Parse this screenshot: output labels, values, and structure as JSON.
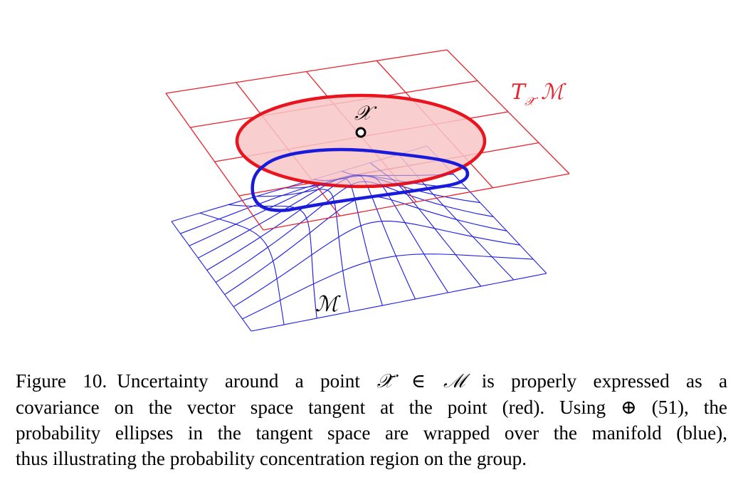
{
  "figure": {
    "tangent_label_T": "T",
    "tangent_label_sub": "𝒳̄",
    "tangent_label_M": "ℳ",
    "point_label": "𝒳",
    "manifold_label": "ℳ",
    "colors": {
      "tangent_plane": "#e8232b",
      "ellipse_fill": "#f7c6c6",
      "ellipse_stroke": "#e8141e",
      "manifold": "#1f1fe6",
      "wrapped_region": "#1a1adb"
    }
  },
  "caption": {
    "line1_a": "Figure 10.",
    "line1_b": "Uncertainty around a point",
    "line1_sym": "𝒳̄ ∈ ℳ",
    "line1_c": "is properly expressed as a",
    "line2": "covariance on the vector space tangent at the point (red). Using ⊕ (51), the",
    "line3": "probability ellipses in the tangent space are wrapped over the manifold (blue),",
    "line4": "thus illustrating the probability concentration region on the group."
  }
}
